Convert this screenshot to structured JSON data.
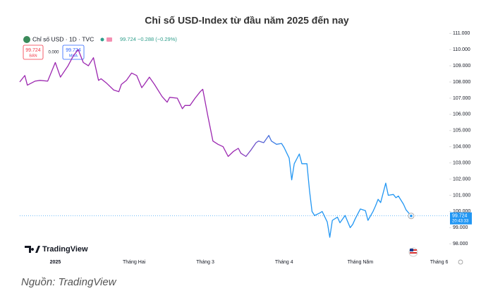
{
  "chart_data": {
    "type": "line",
    "title": "Chỉ số USD-Index từ đầu năm 2025 đến nay",
    "source": "Nguồn: TradingView",
    "watermark": "TradingView",
    "header": {
      "legend_values": "99.724 −0.288 (−0.29%)",
      "sell_price": "99.724",
      "sell_label": "BÁN",
      "spread": "0.000",
      "buy_price": "99.724",
      "buy_label": "MUA",
      "last_time": "20:43:33"
    },
    "last_price": 99.724,
    "colors": [
      "#9c27b0",
      "#2196f3"
    ],
    "series": [
      {
        "name": "Chỉ số USD · 1D · TVC",
        "color": "#2196f3",
        "x": [
          -14,
          -12,
          -11,
          -8,
          -6,
          -3,
          0,
          2,
          5,
          7,
          9,
          11,
          13,
          15,
          17,
          18,
          20,
          23,
          25,
          26,
          28,
          30,
          32,
          34,
          35,
          37,
          39,
          42,
          44,
          45,
          48,
          50,
          51,
          53,
          55,
          57,
          58,
          60,
          62,
          64,
          66,
          68,
          70,
          72,
          73,
          75,
          77,
          79,
          80,
          82,
          84,
          85,
          87,
          89,
          90,
          92,
          93,
          94,
          96,
          97,
          99,
          100,
          101,
          102,
          104,
          105,
          107,
          108,
          109,
          111,
          112,
          114,
          116,
          117,
          118,
          120,
          122,
          123,
          125,
          126,
          127,
          128,
          130,
          131,
          133,
          134,
          135,
          137,
          138,
          140
        ],
        "values": [
          108.0,
          108.4,
          107.8,
          108.05,
          108.1,
          108.05,
          109.2,
          108.3,
          109.0,
          109.6,
          110.0,
          109.2,
          109.0,
          109.5,
          108.1,
          108.2,
          107.95,
          107.5,
          107.4,
          107.85,
          108.1,
          108.55,
          108.4,
          107.65,
          107.85,
          108.3,
          107.85,
          107.1,
          106.75,
          107.05,
          107.0,
          106.35,
          106.55,
          106.55,
          107.0,
          107.4,
          107.55,
          105.9,
          104.35,
          104.15,
          104.0,
          103.4,
          103.7,
          103.9,
          103.6,
          103.4,
          103.8,
          104.25,
          104.35,
          104.25,
          104.7,
          104.35,
          104.15,
          104.2,
          103.95,
          103.3,
          101.95,
          102.95,
          103.55,
          102.95,
          102.95,
          101.3,
          100.0,
          99.75,
          99.9,
          100.0,
          99.35,
          98.4,
          99.45,
          99.65,
          99.3,
          99.75,
          99.0,
          99.2,
          99.55,
          100.15,
          100.05,
          99.45,
          100.0,
          100.35,
          100.75,
          100.55,
          101.75,
          101.0,
          101.05,
          100.85,
          100.95,
          100.45,
          100.1,
          99.724
        ]
      }
    ],
    "xlim": [
      -14,
      155
    ],
    "xticks": [
      {
        "value": 0,
        "label": "2025"
      },
      {
        "value": 31,
        "label": "Tháng Hai"
      },
      {
        "value": 59,
        "label": "Tháng 3"
      },
      {
        "value": 90,
        "label": "Tháng 4"
      },
      {
        "value": 120,
        "label": "Tháng Năm"
      },
      {
        "value": 151,
        "label": "Tháng 6"
      }
    ],
    "ylim": [
      96.7,
      111.1
    ],
    "yticks": [
      {
        "value": 98,
        "label": "98.000"
      },
      {
        "value": 99,
        "label": "99.000"
      },
      {
        "value": 100,
        "label": "100.000"
      },
      {
        "value": 101,
        "label": "101.000"
      },
      {
        "value": 102,
        "label": "102.000"
      },
      {
        "value": 103,
        "label": "103.000"
      },
      {
        "value": 104,
        "label": "104.000"
      },
      {
        "value": 105,
        "label": "105.000"
      },
      {
        "value": 106,
        "label": "106.000"
      },
      {
        "value": 107,
        "label": "107.000"
      },
      {
        "value": 108,
        "label": "108.000"
      },
      {
        "value": 109,
        "label": "109.000"
      },
      {
        "value": 110,
        "label": "110.000"
      },
      {
        "value": 111,
        "label": "111.000"
      }
    ]
  }
}
